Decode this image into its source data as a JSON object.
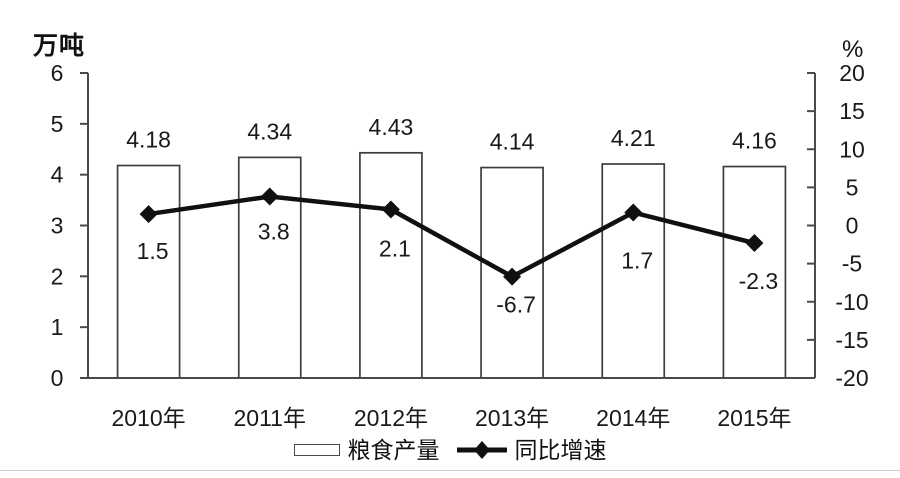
{
  "chart_data": {
    "type": "bar",
    "subtype": "bar+line dual axis combo",
    "categories": [
      "2010年",
      "2011年",
      "2012年",
      "2013年",
      "2014年",
      "2015年"
    ],
    "series": [
      {
        "name": "粮食产量",
        "type": "bar",
        "axis": "left",
        "values": [
          4.18,
          4.34,
          4.43,
          4.14,
          4.21,
          4.16
        ],
        "labels": [
          "4.18",
          "4.34",
          "4.43",
          "4.14",
          "4.21",
          "4.16"
        ]
      },
      {
        "name": "同比增速",
        "type": "line",
        "axis": "right",
        "marker": "diamond",
        "values": [
          1.5,
          3.8,
          2.1,
          -6.7,
          1.7,
          -2.3
        ],
        "labels": [
          "1.5",
          "3.8",
          "2.1",
          "-6.7",
          "1.7",
          "-2.3"
        ]
      }
    ],
    "axes": {
      "left": {
        "title": "万吨",
        "min": 0,
        "max": 6,
        "ticks": [
          6,
          5,
          4,
          3,
          2,
          1,
          0
        ]
      },
      "right": {
        "title": "%",
        "min": -20,
        "max": 20,
        "ticks": [
          20,
          15,
          10,
          5,
          0,
          -5,
          -10,
          -15,
          -20
        ]
      }
    },
    "legend": {
      "position": "bottom"
    },
    "grid": false,
    "colors": {
      "bar_fill": "#ffffff",
      "bar_border": "#3d3d3d",
      "line": "#101010",
      "text": "#1a1a1a",
      "axis": "#4a4a4a"
    }
  }
}
